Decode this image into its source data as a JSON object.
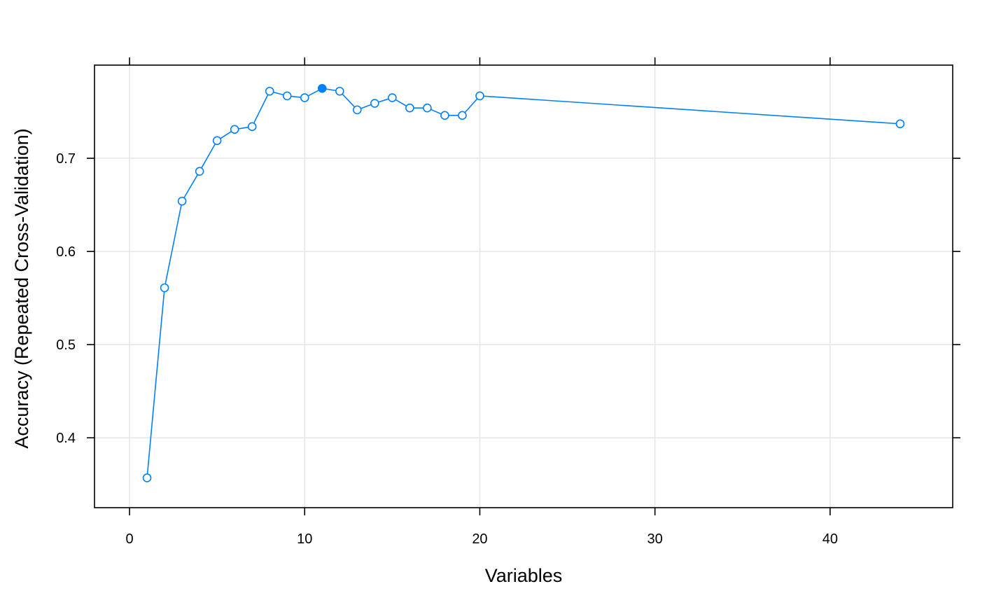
{
  "chart_data": {
    "type": "line",
    "title": "",
    "xlabel": "Variables",
    "ylabel": "Accuracy (Repeated Cross-Validation)",
    "xlim": [
      -2,
      47
    ],
    "ylim": [
      0.325,
      0.8
    ],
    "x_ticks": [
      0,
      10,
      20,
      30,
      40
    ],
    "x_tick_labels": [
      "0",
      "10",
      "20",
      "30",
      "40"
    ],
    "y_ticks": [
      0.4,
      0.5,
      0.6,
      0.7
    ],
    "y_tick_labels": [
      "0.4",
      "0.5",
      "0.6",
      "0.7"
    ],
    "grid": true,
    "legend": "none",
    "series": [
      {
        "color": "#0080ff",
        "marker": "open-circle",
        "x": [
          1,
          2,
          3,
          4,
          5,
          6,
          7,
          8,
          9,
          10,
          11,
          12,
          13,
          14,
          15,
          16,
          17,
          18,
          19,
          20,
          44
        ],
        "y": [
          0.357,
          0.561,
          0.654,
          0.686,
          0.719,
          0.731,
          0.734,
          0.772,
          0.767,
          0.765,
          0.775,
          0.772,
          0.752,
          0.759,
          0.765,
          0.754,
          0.754,
          0.746,
          0.746,
          0.767,
          0.737
        ]
      }
    ],
    "highlight_point": {
      "x": 11,
      "y": 0.775,
      "marker": "filled-circle"
    }
  }
}
